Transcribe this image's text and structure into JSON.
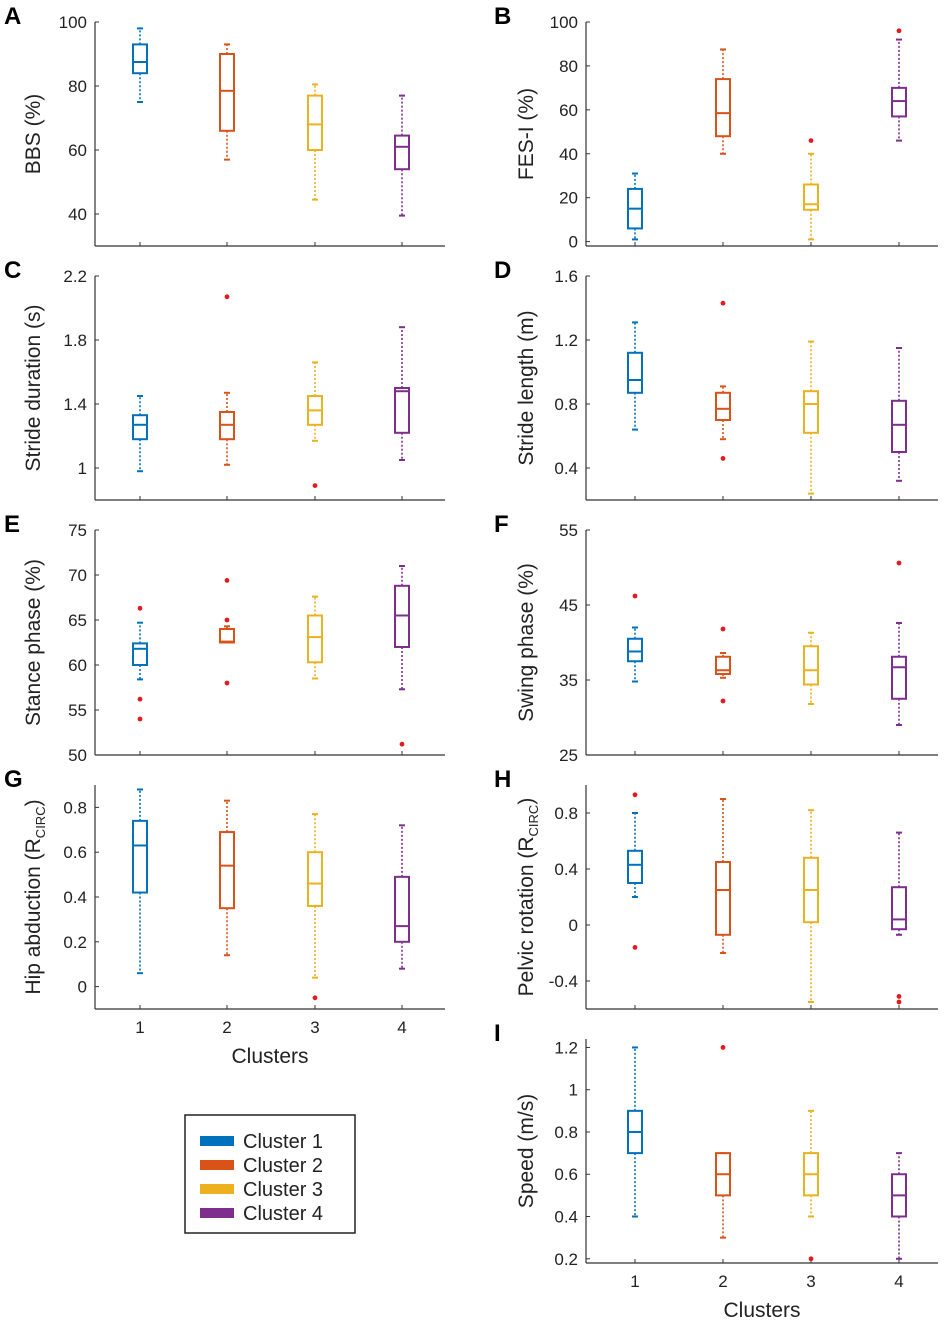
{
  "colors": {
    "cluster1": "#0072BD",
    "cluster2": "#D95319",
    "cluster3": "#EDB120",
    "cluster4": "#7E2F8E",
    "outlier": "#E41A1C",
    "axis": "#333333"
  },
  "legend": {
    "items": [
      {
        "label": "Cluster 1",
        "color_key": "cluster1"
      },
      {
        "label": "Cluster 2",
        "color_key": "cluster2"
      },
      {
        "label": "Cluster 3",
        "color_key": "cluster3"
      },
      {
        "label": "Cluster 4",
        "color_key": "cluster4"
      }
    ]
  },
  "chart_data": [
    {
      "panel": "A",
      "type": "box",
      "ylabel": "BBS (%)",
      "ylim": [
        30,
        100
      ],
      "yticks": [
        "40",
        "60",
        "80",
        "100"
      ],
      "ytick_values": [
        40,
        60,
        80,
        100
      ],
      "categories": [
        "1",
        "2",
        "3",
        "4"
      ],
      "xlabel": "",
      "boxes": [
        {
          "min": 75,
          "q1": 84,
          "median": 87.5,
          "q3": 93,
          "max": 98,
          "outliers": []
        },
        {
          "min": 57,
          "q1": 66,
          "median": 78.5,
          "q3": 90,
          "max": 93,
          "outliers": []
        },
        {
          "min": 44.5,
          "q1": 60,
          "median": 68,
          "q3": 77,
          "max": 80.5,
          "outliers": []
        },
        {
          "min": 39.5,
          "q1": 54,
          "median": 61,
          "q3": 64.5,
          "max": 77,
          "outliers": []
        }
      ]
    },
    {
      "panel": "B",
      "type": "box",
      "ylabel": "FES-I (%)",
      "ylim": [
        -2,
        100
      ],
      "yticks": [
        "0",
        "20",
        "40",
        "60",
        "80",
        "100"
      ],
      "ytick_values": [
        0,
        20,
        40,
        60,
        80,
        100
      ],
      "categories": [
        "1",
        "2",
        "3",
        "4"
      ],
      "xlabel": "",
      "boxes": [
        {
          "min": 1,
          "q1": 6,
          "median": 15,
          "q3": 24,
          "max": 31,
          "outliers": []
        },
        {
          "min": 40,
          "q1": 48,
          "median": 58.5,
          "q3": 74,
          "max": 87.5,
          "outliers": []
        },
        {
          "min": 1,
          "q1": 14.5,
          "median": 17,
          "q3": 26,
          "max": 40,
          "outliers": [
            46
          ]
        },
        {
          "min": 46,
          "q1": 57,
          "median": 64,
          "q3": 70,
          "max": 92,
          "outliers": [
            96
          ]
        }
      ]
    },
    {
      "panel": "C",
      "type": "box",
      "ylabel": "Stride duration (s)",
      "ylim": [
        0.8,
        2.2
      ],
      "yticks": [
        "1",
        "1.4",
        "1.8",
        "2.2"
      ],
      "ytick_values": [
        1,
        1.4,
        1.8,
        2.2
      ],
      "categories": [
        "1",
        "2",
        "3",
        "4"
      ],
      "xlabel": "",
      "boxes": [
        {
          "min": 0.98,
          "q1": 1.18,
          "median": 1.27,
          "q3": 1.33,
          "max": 1.45,
          "outliers": []
        },
        {
          "min": 1.02,
          "q1": 1.18,
          "median": 1.27,
          "q3": 1.35,
          "max": 1.47,
          "outliers": [
            2.07
          ]
        },
        {
          "min": 1.17,
          "q1": 1.27,
          "median": 1.36,
          "q3": 1.45,
          "max": 1.66,
          "outliers": [
            0.89
          ]
        },
        {
          "min": 1.05,
          "q1": 1.22,
          "median": 1.48,
          "q3": 1.5,
          "max": 1.88,
          "outliers": []
        }
      ]
    },
    {
      "panel": "D",
      "type": "box",
      "ylabel": "Stride length (m)",
      "ylim": [
        0.2,
        1.6
      ],
      "yticks": [
        "0.4",
        "0.8",
        "1.2",
        "1.6"
      ],
      "ytick_values": [
        0.4,
        0.8,
        1.2,
        1.6
      ],
      "categories": [
        "1",
        "2",
        "3",
        "4"
      ],
      "xlabel": "",
      "boxes": [
        {
          "min": 0.64,
          "q1": 0.87,
          "median": 0.95,
          "q3": 1.12,
          "max": 1.31,
          "outliers": []
        },
        {
          "min": 0.58,
          "q1": 0.7,
          "median": 0.77,
          "q3": 0.87,
          "max": 0.91,
          "outliers": [
            0.46,
            1.43
          ]
        },
        {
          "min": 0.24,
          "q1": 0.62,
          "median": 0.8,
          "q3": 0.88,
          "max": 1.19,
          "outliers": []
        },
        {
          "min": 0.32,
          "q1": 0.5,
          "median": 0.67,
          "q3": 0.82,
          "max": 1.15,
          "outliers": []
        }
      ]
    },
    {
      "panel": "E",
      "type": "box",
      "ylabel": "Stance phase (%)",
      "ylim": [
        50,
        75
      ],
      "yticks": [
        "50",
        "55",
        "60",
        "65",
        "70",
        "75"
      ],
      "ytick_values": [
        50,
        55,
        60,
        65,
        70,
        75
      ],
      "categories": [
        "1",
        "2",
        "3",
        "4"
      ],
      "xlabel": "",
      "boxes": [
        {
          "min": 58.4,
          "q1": 60,
          "median": 61.8,
          "q3": 62.4,
          "max": 64.7,
          "outliers": [
            54,
            56.2,
            66.3
          ]
        },
        {
          "min": 62.5,
          "q1": 62.5,
          "median": 62.6,
          "q3": 64,
          "max": 64.3,
          "outliers": [
            58,
            65,
            69.4
          ]
        },
        {
          "min": 58.5,
          "q1": 60.3,
          "median": 63.1,
          "q3": 65.5,
          "max": 67.6,
          "outliers": []
        },
        {
          "min": 57.3,
          "q1": 62,
          "median": 65.5,
          "q3": 68.8,
          "max": 71,
          "outliers": [
            51.2
          ]
        }
      ]
    },
    {
      "panel": "F",
      "type": "box",
      "ylabel": "Swing phase (%)",
      "ylim": [
        25,
        55
      ],
      "yticks": [
        "25",
        "35",
        "45",
        "55"
      ],
      "ytick_values": [
        25,
        35,
        45,
        55
      ],
      "categories": [
        "1",
        "2",
        "3",
        "4"
      ],
      "xlabel": "",
      "boxes": [
        {
          "min": 34.8,
          "q1": 37.5,
          "median": 38.8,
          "q3": 40.5,
          "max": 42,
          "outliers": [
            46.2
          ]
        },
        {
          "min": 35.3,
          "q1": 35.8,
          "median": 36.3,
          "q3": 38.1,
          "max": 38.6,
          "outliers": [
            32.2,
            41.8
          ]
        },
        {
          "min": 31.8,
          "q1": 34.4,
          "median": 36.3,
          "q3": 39.5,
          "max": 41.3,
          "outliers": []
        },
        {
          "min": 29,
          "q1": 32.5,
          "median": 36.7,
          "q3": 38.1,
          "max": 42.6,
          "outliers": [
            50.6
          ]
        }
      ]
    },
    {
      "panel": "G",
      "type": "box",
      "ylabel": "Hip abduction (R",
      "ylabel_sub": "CIRC",
      "ylabel_end": ")",
      "ylim": [
        -0.1,
        0.9
      ],
      "yticks": [
        "0",
        "0.2",
        "0.4",
        "0.6",
        "0.8"
      ],
      "ytick_values": [
        0,
        0.2,
        0.4,
        0.6,
        0.8
      ],
      "categories": [
        "1",
        "2",
        "3",
        "4"
      ],
      "xlabel": "Clusters",
      "boxes": [
        {
          "min": 0.06,
          "q1": 0.42,
          "median": 0.63,
          "q3": 0.74,
          "max": 0.88,
          "outliers": []
        },
        {
          "min": 0.14,
          "q1": 0.35,
          "median": 0.54,
          "q3": 0.69,
          "max": 0.83,
          "outliers": []
        },
        {
          "min": 0.04,
          "q1": 0.36,
          "median": 0.46,
          "q3": 0.6,
          "max": 0.77,
          "outliers": [
            -0.05
          ]
        },
        {
          "min": 0.08,
          "q1": 0.2,
          "median": 0.27,
          "q3": 0.49,
          "max": 0.72,
          "outliers": []
        }
      ]
    },
    {
      "panel": "H",
      "type": "box",
      "ylabel": "Pelvic rotation (R",
      "ylabel_sub": "CIRC",
      "ylabel_end": ")",
      "ylim": [
        -0.6,
        1.0
      ],
      "yticks": [
        "-0.4",
        "0",
        "0.4",
        "0.8"
      ],
      "ytick_values": [
        -0.4,
        0,
        0.4,
        0.8
      ],
      "categories": [
        "1",
        "2",
        "3",
        "4"
      ],
      "xlabel": "",
      "boxes": [
        {
          "min": 0.2,
          "q1": 0.3,
          "median": 0.43,
          "q3": 0.53,
          "max": 0.8,
          "outliers": [
            0.93,
            -0.16
          ]
        },
        {
          "min": -0.2,
          "q1": -0.07,
          "median": 0.25,
          "q3": 0.45,
          "max": 0.9,
          "outliers": []
        },
        {
          "min": -0.55,
          "q1": 0.02,
          "median": 0.25,
          "q3": 0.48,
          "max": 0.82,
          "outliers": []
        },
        {
          "min": -0.07,
          "q1": -0.03,
          "median": 0.04,
          "q3": 0.27,
          "max": 0.66,
          "outliers": [
            -0.51,
            -0.55
          ]
        }
      ]
    },
    {
      "panel": "I",
      "type": "box",
      "ylabel": "Speed (m/s)",
      "ylim": [
        0.18,
        1.24
      ],
      "yticks": [
        "0.2",
        "0.4",
        "0.6",
        "0.8",
        "1",
        "1.2"
      ],
      "ytick_values": [
        0.2,
        0.4,
        0.6,
        0.8,
        1,
        1.2
      ],
      "categories": [
        "1",
        "2",
        "3",
        "4"
      ],
      "xlabel": "Clusters",
      "boxes": [
        {
          "min": 0.4,
          "q1": 0.7,
          "median": 0.8,
          "q3": 0.9,
          "max": 1.2,
          "outliers": []
        },
        {
          "min": 0.3,
          "q1": 0.5,
          "median": 0.6,
          "q3": 0.7,
          "max": 0.7,
          "outliers": [
            1.2
          ]
        },
        {
          "min": 0.4,
          "q1": 0.5,
          "median": 0.6,
          "q3": 0.7,
          "max": 0.9,
          "outliers": [
            0.2
          ]
        },
        {
          "min": 0.2,
          "q1": 0.4,
          "median": 0.5,
          "q3": 0.6,
          "max": 0.7,
          "outliers": []
        }
      ]
    }
  ]
}
